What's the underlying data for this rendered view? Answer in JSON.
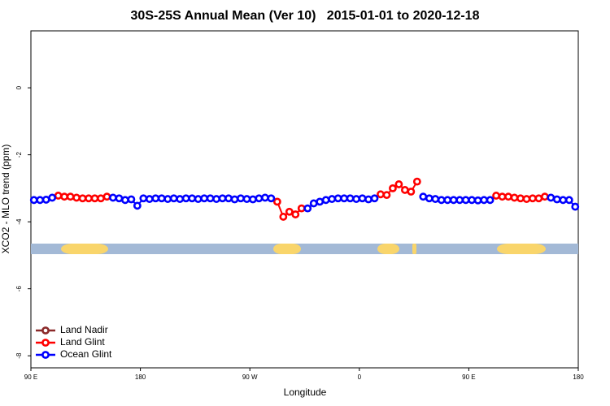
{
  "chart_data": {
    "type": "line",
    "title": "30S-25S Annual Mean (Ver 10)   2015-01-01 to 2020-12-18",
    "x_label": "Longitude",
    "y_label": "XCO2 - MLO trend (ppm)",
    "xlim": [
      90,
      540
    ],
    "ylim": [
      -8.36,
      1.7
    ],
    "xticks": [
      {
        "value": 90,
        "label": "90 E"
      },
      180,
      {
        "value": 270,
        "label": "90 W"
      },
      {
        "value": 360,
        "label": "0"
      },
      {
        "value": 450,
        "label": "90 E"
      },
      {
        "value": 540,
        "label": "180"
      }
    ],
    "yticks": [
      0,
      -2,
      -4,
      -6,
      -8
    ],
    "legend": "bottom-left",
    "x": [
      92.5,
      97.5,
      102.5,
      107.5,
      112.5,
      117.5,
      122.5,
      127.5,
      132.5,
      137.5,
      142.5,
      147.5,
      152.5,
      157.5,
      162.5,
      167.5,
      172.5,
      177.5,
      182.5,
      187.5,
      192.5,
      197.5,
      202.5,
      207.5,
      212.5,
      217.5,
      222.5,
      227.5,
      232.5,
      237.5,
      242.5,
      247.5,
      252.5,
      257.5,
      262.5,
      267.5,
      272.5,
      277.5,
      282.5,
      287.5,
      292.5,
      297.5,
      302.5,
      307.5,
      312.5,
      317.5,
      322.5,
      327.5,
      332.5,
      337.5,
      342.5,
      347.5,
      352.5,
      357.5,
      362.5,
      367.5,
      372.5,
      377.5,
      382.5,
      387.5,
      392.5,
      397.5,
      402.5,
      407.5,
      412.5,
      417.5,
      422.5,
      427.5,
      432.5,
      437.5,
      442.5,
      447.5,
      452.5,
      457.5,
      462.5,
      467.5,
      472.5,
      477.5,
      482.5,
      487.5,
      492.5,
      497.5,
      502.5,
      507.5,
      512.5,
      517.5,
      522.5,
      527.5,
      532.5,
      537.5
    ],
    "series": [
      {
        "name": "Land Nadir",
        "color": "#8b2a2a",
        "values": [
          null,
          null,
          null,
          null,
          null,
          null,
          null,
          null,
          null,
          null,
          null,
          null,
          null,
          null,
          null,
          null,
          null,
          null,
          null,
          null,
          null,
          null,
          null,
          null,
          null,
          null,
          null,
          null,
          null,
          null,
          null,
          null,
          null,
          null,
          null,
          null,
          null,
          null,
          null,
          null,
          null,
          null,
          null,
          null,
          null,
          null,
          null,
          null,
          null,
          null,
          null,
          null,
          null,
          null,
          null,
          null,
          null,
          null,
          null,
          null,
          null,
          null,
          null,
          null,
          null,
          null,
          null,
          null,
          null,
          null,
          null,
          null,
          null,
          null,
          null,
          null,
          null,
          null,
          null,
          null,
          null,
          null,
          null,
          null,
          null,
          null,
          null,
          null,
          null,
          null
        ]
      },
      {
        "name": "Land Glint",
        "color": "#ff0000",
        "values": [
          null,
          null,
          null,
          null,
          -3.22,
          -3.25,
          -3.25,
          -3.28,
          -3.3,
          -3.3,
          -3.3,
          -3.3,
          -3.25,
          null,
          null,
          null,
          null,
          null,
          null,
          null,
          null,
          null,
          null,
          null,
          null,
          null,
          null,
          null,
          null,
          null,
          null,
          null,
          null,
          null,
          null,
          null,
          null,
          null,
          null,
          null,
          -3.4,
          -3.85,
          -3.7,
          -3.78,
          -3.6,
          null,
          null,
          null,
          null,
          null,
          null,
          null,
          null,
          null,
          null,
          null,
          null,
          -3.18,
          -3.2,
          -3.0,
          -2.88,
          -3.05,
          -3.1,
          -2.8,
          null,
          null,
          null,
          null,
          null,
          null,
          null,
          null,
          null,
          null,
          null,
          null,
          -3.22,
          -3.25,
          -3.25,
          -3.28,
          -3.3,
          -3.32,
          -3.3,
          -3.3,
          -3.25,
          null,
          null,
          null,
          null,
          null
        ]
      },
      {
        "name": "Ocean Glint",
        "color": "#0000ff",
        "values": [
          -3.35,
          -3.35,
          -3.34,
          -3.28,
          null,
          null,
          null,
          null,
          null,
          null,
          null,
          null,
          null,
          -3.28,
          -3.3,
          -3.35,
          -3.33,
          -3.52,
          -3.3,
          -3.32,
          -3.3,
          -3.3,
          -3.32,
          -3.3,
          -3.32,
          -3.3,
          -3.3,
          -3.32,
          -3.3,
          -3.3,
          -3.32,
          -3.3,
          -3.3,
          -3.33,
          -3.3,
          -3.32,
          -3.33,
          -3.3,
          -3.28,
          -3.3,
          null,
          null,
          null,
          null,
          null,
          -3.6,
          -3.45,
          -3.4,
          -3.35,
          -3.32,
          -3.3,
          -3.3,
          -3.3,
          -3.32,
          -3.3,
          -3.33,
          -3.3,
          null,
          null,
          null,
          null,
          null,
          null,
          null,
          -3.25,
          -3.3,
          -3.32,
          -3.35,
          -3.35,
          -3.35,
          -3.35,
          -3.35,
          -3.35,
          -3.36,
          -3.35,
          -3.35,
          null,
          null,
          null,
          null,
          null,
          null,
          null,
          null,
          null,
          -3.28,
          -3.33,
          -3.35,
          -3.35,
          -3.55
        ]
      }
    ]
  }
}
